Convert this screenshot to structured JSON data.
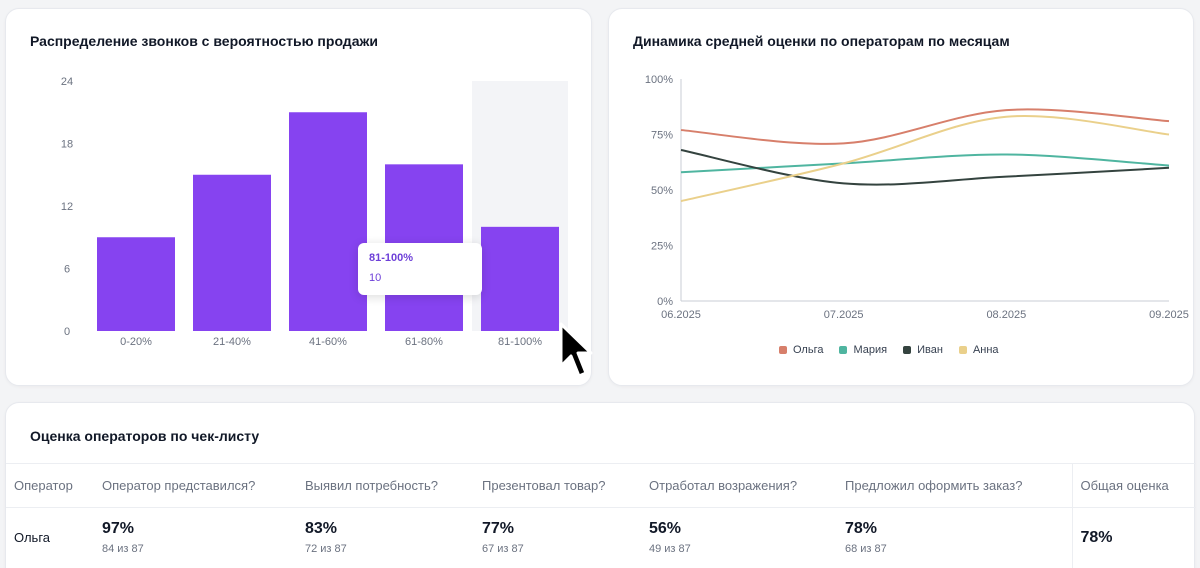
{
  "bar_card": {
    "title": "Распределение звонков с вероятностью продажи",
    "tooltip": {
      "label": "81-100%",
      "value": "10"
    }
  },
  "line_card": {
    "title": "Динамика средней оценки по операторам по месяцам"
  },
  "chart_data": [
    {
      "type": "bar",
      "title": "Распределение звонков с вероятностью продажи",
      "categories": [
        "0-20%",
        "21-40%",
        "41-60%",
        "61-80%",
        "81-100%"
      ],
      "values": [
        9,
        15,
        21,
        16,
        10
      ],
      "ylim": [
        0,
        24
      ],
      "yticks": [
        0,
        6,
        12,
        18,
        24
      ],
      "highlighted_category": "81-100%",
      "grid": false,
      "bar_color": "#8643f0"
    },
    {
      "type": "line",
      "title": "Динамика средней оценки по операторам по месяцам",
      "x": [
        "06.2025",
        "07.2025",
        "08.2025",
        "09.2025"
      ],
      "yticks": [
        "0%",
        "25%",
        "50%",
        "75%",
        "100%"
      ],
      "ylim": [
        0,
        100
      ],
      "legend_position": "bottom",
      "series": [
        {
          "name": "Ольга",
          "color": "#d77f6b",
          "values": [
            77,
            71,
            86,
            81
          ]
        },
        {
          "name": "Мария",
          "color": "#4fb5a0",
          "values": [
            58,
            62,
            66,
            61
          ]
        },
        {
          "name": "Иван",
          "color": "#34433f",
          "values": [
            68,
            53,
            56,
            60
          ]
        },
        {
          "name": "Анна",
          "color": "#ead08b",
          "values": [
            45,
            62,
            83,
            75
          ]
        }
      ]
    }
  ],
  "table_card": {
    "title": "Оценка операторов по чек-листу",
    "headers": [
      "Оператор",
      "Оператор представился?",
      "Выявил потребность?",
      "Презентовал товар?",
      "Отработал возражения?",
      "Предложил оформить заказ?",
      "Общая оценка"
    ],
    "rows": [
      {
        "name": "Ольга",
        "cells": [
          {
            "pct": "97%",
            "sub": "84 из 87"
          },
          {
            "pct": "83%",
            "sub": "72 из 87"
          },
          {
            "pct": "77%",
            "sub": "67 из 87"
          },
          {
            "pct": "56%",
            "sub": "49 из 87"
          },
          {
            "pct": "78%",
            "sub": "68 из 87"
          }
        ],
        "total": "78%"
      }
    ]
  }
}
